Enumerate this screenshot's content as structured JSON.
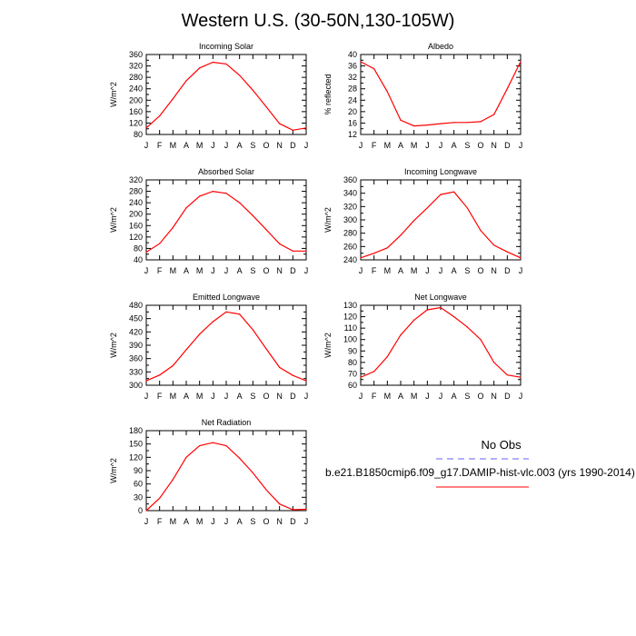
{
  "title": "Western U.S. (30-50N,130-105W)",
  "months": [
    "J",
    "F",
    "M",
    "A",
    "M",
    "J",
    "J",
    "A",
    "S",
    "O",
    "N",
    "D",
    "J"
  ],
  "legend": {
    "obs_label": "No Obs",
    "obs_color": "#8080ff",
    "model_label": "b.e21.B1850cmip6.f09_g17.DAMIP-hist-vlc.003 (yrs 1990-2014)",
    "model_color": "#ff0000"
  },
  "chart_data": [
    {
      "type": "line",
      "title": "Incoming Solar",
      "ylabel": "W/m^2",
      "ylim": [
        80,
        360
      ],
      "yticks": [
        80,
        120,
        160,
        200,
        240,
        280,
        320,
        360
      ],
      "categories": [
        "J",
        "F",
        "M",
        "A",
        "M",
        "J",
        "J",
        "A",
        "S",
        "O",
        "N",
        "D",
        "J"
      ],
      "values": [
        103,
        145,
        205,
        268,
        313,
        333,
        327,
        287,
        235,
        177,
        118,
        95,
        103
      ]
    },
    {
      "type": "line",
      "title": "Albedo",
      "ylabel": "% reflected",
      "ylim": [
        12,
        40
      ],
      "yticks": [
        12,
        16,
        20,
        24,
        28,
        32,
        36,
        40
      ],
      "categories": [
        "J",
        "F",
        "M",
        "A",
        "M",
        "J",
        "J",
        "A",
        "S",
        "O",
        "N",
        "D",
        "J"
      ],
      "values": [
        37.5,
        35,
        27,
        17,
        15,
        15.3,
        15.8,
        16.2,
        16.2,
        16.5,
        19,
        28,
        37.5
      ]
    },
    {
      "type": "line",
      "title": "Absorbed Solar",
      "ylabel": "W/m^2",
      "ylim": [
        40,
        320
      ],
      "yticks": [
        40,
        80,
        120,
        160,
        200,
        240,
        280,
        320
      ],
      "categories": [
        "J",
        "F",
        "M",
        "A",
        "M",
        "J",
        "J",
        "A",
        "S",
        "O",
        "N",
        "D",
        "J"
      ],
      "values": [
        67,
        97,
        153,
        222,
        263,
        280,
        273,
        240,
        195,
        146,
        96,
        71,
        71
      ]
    },
    {
      "type": "line",
      "title": "Incoming Longwave",
      "ylabel": "W/m^2",
      "ylim": [
        240,
        360
      ],
      "yticks": [
        240,
        260,
        280,
        300,
        320,
        340,
        360
      ],
      "categories": [
        "J",
        "F",
        "M",
        "A",
        "M",
        "J",
        "J",
        "A",
        "S",
        "O",
        "N",
        "D",
        "J"
      ],
      "values": [
        243,
        250,
        258,
        277,
        299,
        318,
        338,
        342,
        318,
        284,
        262,
        252,
        243
      ]
    },
    {
      "type": "line",
      "title": "Emitted Longwave",
      "ylabel": "W/m^2",
      "ylim": [
        300,
        480
      ],
      "yticks": [
        300,
        330,
        360,
        390,
        420,
        450,
        480
      ],
      "categories": [
        "J",
        "F",
        "M",
        "A",
        "M",
        "J",
        "J",
        "A",
        "S",
        "O",
        "N",
        "D",
        "J"
      ],
      "values": [
        310,
        323,
        344,
        380,
        415,
        443,
        465,
        460,
        425,
        382,
        340,
        322,
        310
      ]
    },
    {
      "type": "line",
      "title": "Net Longwave",
      "ylabel": "W/m^2",
      "ylim": [
        60,
        130
      ],
      "yticks": [
        60,
        70,
        80,
        90,
        100,
        110,
        120,
        130
      ],
      "categories": [
        "J",
        "F",
        "M",
        "A",
        "M",
        "J",
        "J",
        "A",
        "S",
        "O",
        "N",
        "D",
        "J"
      ],
      "values": [
        67,
        72,
        85,
        104,
        117,
        126,
        128,
        120,
        111,
        100,
        80,
        69,
        67
      ]
    },
    {
      "type": "line",
      "title": "Net Radiation",
      "ylabel": "W/m^2",
      "ylim": [
        0,
        180
      ],
      "yticks": [
        0,
        30,
        60,
        90,
        120,
        150,
        180
      ],
      "categories": [
        "J",
        "F",
        "M",
        "A",
        "M",
        "J",
        "J",
        "A",
        "S",
        "O",
        "N",
        "D",
        "J"
      ],
      "values": [
        0,
        28,
        70,
        120,
        146,
        153,
        146,
        118,
        85,
        47,
        15,
        2,
        3
      ]
    }
  ]
}
